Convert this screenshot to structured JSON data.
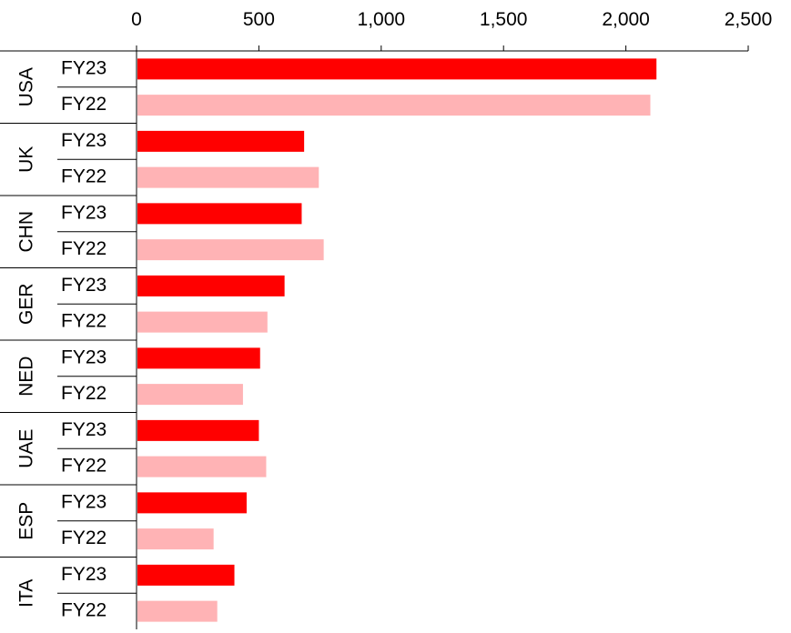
{
  "chart_data": {
    "type": "bar",
    "orientation": "horizontal",
    "x_axis": {
      "position": "top",
      "range": [
        0,
        2500
      ],
      "ticks": [
        0,
        500,
        1000,
        1500,
        2000,
        2500
      ],
      "tick_labels": [
        "0",
        "500",
        "1,000",
        "1,500",
        "2,000",
        "2,500"
      ]
    },
    "grid": false,
    "legend": "none",
    "colors": {
      "FY23": "#ff0000",
      "FY22": "#ffb3b5"
    },
    "groups": [
      {
        "label": "USA",
        "bars": [
          {
            "series": "FY23",
            "value": 2125
          },
          {
            "series": "FY22",
            "value": 2100
          }
        ]
      },
      {
        "label": "UK",
        "bars": [
          {
            "series": "FY23",
            "value": 685
          },
          {
            "series": "FY22",
            "value": 745
          }
        ]
      },
      {
        "label": "CHN",
        "bars": [
          {
            "series": "FY23",
            "value": 675
          },
          {
            "series": "FY22",
            "value": 765
          }
        ]
      },
      {
        "label": "GER",
        "bars": [
          {
            "series": "FY23",
            "value": 605
          },
          {
            "series": "FY22",
            "value": 535
          }
        ]
      },
      {
        "label": "NED",
        "bars": [
          {
            "series": "FY23",
            "value": 505
          },
          {
            "series": "FY22",
            "value": 435
          }
        ]
      },
      {
        "label": "UAE",
        "bars": [
          {
            "series": "FY23",
            "value": 500
          },
          {
            "series": "FY22",
            "value": 530
          }
        ]
      },
      {
        "label": "ESP",
        "bars": [
          {
            "series": "FY23",
            "value": 450
          },
          {
            "series": "FY22",
            "value": 315
          }
        ]
      },
      {
        "label": "ITA",
        "bars": [
          {
            "series": "FY23",
            "value": 400
          },
          {
            "series": "FY22",
            "value": 330
          }
        ]
      }
    ]
  }
}
